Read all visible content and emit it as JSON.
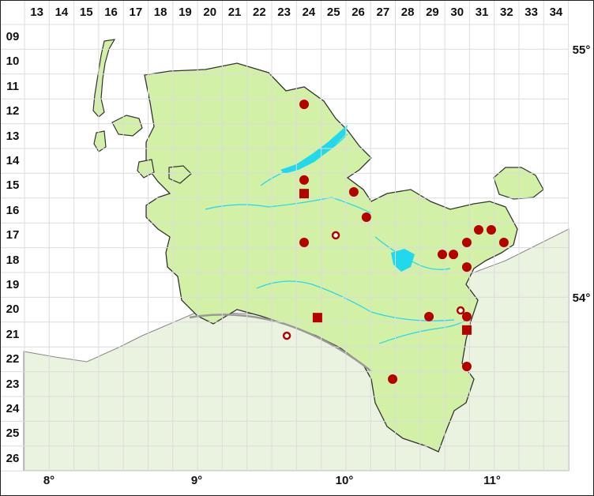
{
  "grid": {
    "columns": [
      "13",
      "14",
      "15",
      "16",
      "17",
      "18",
      "19",
      "20",
      "21",
      "22",
      "23",
      "24",
      "25",
      "26",
      "27",
      "28",
      "29",
      "30",
      "31",
      "32",
      "33",
      "34"
    ],
    "rows": [
      "09",
      "10",
      "11",
      "12",
      "13",
      "14",
      "15",
      "16",
      "17",
      "18",
      "19",
      "20",
      "21",
      "22",
      "23",
      "24",
      "25",
      "26"
    ]
  },
  "longitude_labels": [
    "8°",
    "9°",
    "10°",
    "11°"
  ],
  "latitude_labels": [
    "55°",
    "54°"
  ],
  "colors": {
    "land": "#d2f0a6",
    "surrounding_land": "#e9f3df",
    "water": "#22d8ec",
    "marker": "#b50000",
    "grid": "#dcdcdc"
  },
  "markers": [
    {
      "type": "dot",
      "col": 23.81,
      "row": 11.72
    },
    {
      "type": "dot",
      "col": 23.81,
      "row": 14.77
    },
    {
      "type": "square",
      "col": 23.81,
      "row": 15.32
    },
    {
      "type": "dot",
      "col": 25.82,
      "row": 15.25
    },
    {
      "type": "dot",
      "col": 26.33,
      "row": 16.27
    },
    {
      "type": "dot",
      "col": 23.81,
      "row": 17.29
    },
    {
      "type": "open-circle",
      "col": 25.09,
      "row": 17.0
    },
    {
      "type": "dot",
      "col": 29.4,
      "row": 17.77
    },
    {
      "type": "dot",
      "col": 29.85,
      "row": 17.77
    },
    {
      "type": "dot",
      "col": 30.39,
      "row": 17.29
    },
    {
      "type": "dot",
      "col": 30.87,
      "row": 16.78
    },
    {
      "type": "dot",
      "col": 31.38,
      "row": 16.78
    },
    {
      "type": "dot",
      "col": 31.89,
      "row": 17.29
    },
    {
      "type": "dot",
      "col": 30.39,
      "row": 18.28
    },
    {
      "type": "square",
      "col": 24.35,
      "row": 20.32
    },
    {
      "type": "dot",
      "col": 28.86,
      "row": 20.28
    },
    {
      "type": "open-circle",
      "col": 30.14,
      "row": 20.03
    },
    {
      "type": "dot",
      "col": 30.39,
      "row": 20.28
    },
    {
      "type": "square",
      "col": 30.39,
      "row": 20.82
    },
    {
      "type": "open-circle",
      "col": 23.11,
      "row": 21.05
    },
    {
      "type": "dot",
      "col": 30.39,
      "row": 22.29
    },
    {
      "type": "dot",
      "col": 27.39,
      "row": 22.8
    }
  ]
}
